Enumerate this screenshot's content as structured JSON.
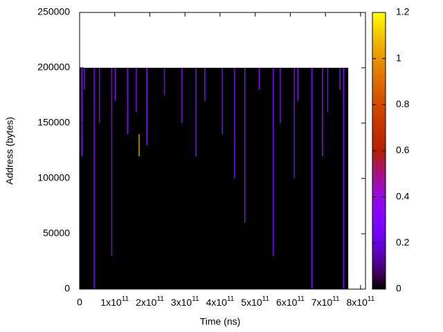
{
  "chart_data": {
    "type": "heatmap",
    "x_label": "Time (ns)",
    "y_label": "Address (bytes)",
    "xlim": [
      0,
      814000000000
    ],
    "ylim": [
      0,
      250000
    ],
    "xticks": [
      0,
      {
        "value": 100000000000,
        "label": "1x10",
        "exponent": "11"
      },
      {
        "value": 200000000000,
        "label": "2x10",
        "exponent": "11"
      },
      {
        "value": 300000000000,
        "label": "3x10",
        "exponent": "11"
      },
      {
        "value": 400000000000,
        "label": "4x10",
        "exponent": "11"
      },
      {
        "value": 500000000000,
        "label": "5x10",
        "exponent": "11"
      },
      {
        "value": 600000000000,
        "label": "6x10",
        "exponent": "11"
      },
      {
        "value": 700000000000,
        "label": "7x10",
        "exponent": "11"
      },
      {
        "value": 800000000000,
        "label": "8x10",
        "exponent": "11"
      }
    ],
    "yticks": [
      0,
      50000,
      100000,
      150000,
      200000,
      250000
    ],
    "clim": [
      0,
      1.2
    ],
    "cticks": [
      0,
      0.2,
      0.4,
      0.6,
      0.8,
      1,
      1.2
    ],
    "block": {
      "x": [
        0,
        765000000000
      ],
      "y": [
        0,
        200000
      ],
      "value": 0
    },
    "streaks": {
      "x": [
        5000000000,
        12000000000,
        40000000000,
        55000000000,
        90000000000,
        100000000000,
        135000000000,
        160000000000,
        168000000000,
        190000000000,
        240000000000,
        290000000000,
        330000000000,
        355000000000,
        405000000000,
        440000000000,
        469000000000,
        510000000000,
        550000000000,
        570000000000,
        610000000000,
        620000000000,
        660000000000,
        690000000000,
        705000000000,
        740000000000,
        750000000000
      ],
      "y_from": [
        120000,
        180000,
        0,
        150000,
        30000,
        170000,
        140000,
        160000,
        120000,
        130000,
        175000,
        150000,
        120000,
        170000,
        140000,
        100000,
        60000,
        180000,
        30000,
        150000,
        100000,
        170000,
        0,
        120000,
        160000,
        180000,
        0
      ],
      "y_to": [
        200000,
        200000,
        200000,
        200000,
        200000,
        200000,
        200000,
        200000,
        140000,
        200000,
        200000,
        200000,
        200000,
        200000,
        200000,
        200000,
        200000,
        200000,
        200000,
        200000,
        200000,
        200000,
        200000,
        200000,
        200000,
        200000,
        200000
      ],
      "values": [
        0.35,
        0.3,
        0.3,
        0.35,
        0.3,
        0.35,
        0.3,
        0.35,
        1,
        0.35,
        0.3,
        0.35,
        0.3,
        0.35,
        0.3,
        0.3,
        0.4,
        0.35,
        0.3,
        0.35,
        0.3,
        0.35,
        0.3,
        0.35,
        0.3,
        0.35,
        0.3
      ]
    }
  }
}
